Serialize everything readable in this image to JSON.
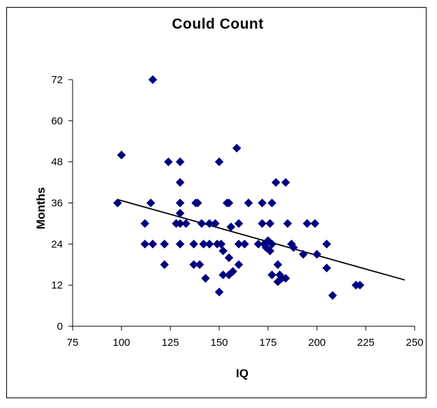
{
  "chart_data": {
    "type": "scatter",
    "title": "Could Count",
    "xlabel": "IQ",
    "ylabel": "Months",
    "xlim": [
      75,
      250
    ],
    "ylim": [
      0,
      72
    ],
    "x_ticks": [
      "75",
      "100",
      "125",
      "150",
      "175",
      "200",
      "225",
      "250"
    ],
    "y_ticks": [
      "0",
      "12",
      "24",
      "36",
      "48",
      "60",
      "72"
    ],
    "grid": false,
    "legend": "none",
    "marker": "diamond",
    "marker_color": "#000080",
    "trendline": {
      "type": "linear",
      "x_start": 98,
      "y_start": 37,
      "x_end": 245,
      "y_end": 13.5,
      "color": "#000000"
    },
    "points": [
      {
        "x": 98,
        "y": 36
      },
      {
        "x": 100,
        "y": 50
      },
      {
        "x": 112,
        "y": 30
      },
      {
        "x": 112,
        "y": 24
      },
      {
        "x": 115,
        "y": 36
      },
      {
        "x": 116,
        "y": 24
      },
      {
        "x": 116,
        "y": 72
      },
      {
        "x": 122,
        "y": 24
      },
      {
        "x": 122,
        "y": 18
      },
      {
        "x": 124,
        "y": 48
      },
      {
        "x": 128,
        "y": 30
      },
      {
        "x": 130,
        "y": 48
      },
      {
        "x": 130,
        "y": 42
      },
      {
        "x": 130,
        "y": 36
      },
      {
        "x": 130,
        "y": 33
      },
      {
        "x": 130,
        "y": 30
      },
      {
        "x": 130,
        "y": 24
      },
      {
        "x": 133,
        "y": 30
      },
      {
        "x": 137,
        "y": 24
      },
      {
        "x": 137,
        "y": 18
      },
      {
        "x": 138,
        "y": 36
      },
      {
        "x": 139,
        "y": 36
      },
      {
        "x": 140,
        "y": 18
      },
      {
        "x": 141,
        "y": 30
      },
      {
        "x": 142,
        "y": 24
      },
      {
        "x": 143,
        "y": 14
      },
      {
        "x": 145,
        "y": 30
      },
      {
        "x": 145,
        "y": 24
      },
      {
        "x": 148,
        "y": 30
      },
      {
        "x": 149,
        "y": 24
      },
      {
        "x": 150,
        "y": 48
      },
      {
        "x": 150,
        "y": 10
      },
      {
        "x": 151,
        "y": 24
      },
      {
        "x": 152,
        "y": 22
      },
      {
        "x": 152,
        "y": 15
      },
      {
        "x": 154,
        "y": 36
      },
      {
        "x": 155,
        "y": 36
      },
      {
        "x": 155,
        "y": 20
      },
      {
        "x": 155,
        "y": 15
      },
      {
        "x": 156,
        "y": 29
      },
      {
        "x": 157,
        "y": 16
      },
      {
        "x": 159,
        "y": 52
      },
      {
        "x": 160,
        "y": 30
      },
      {
        "x": 160,
        "y": 24
      },
      {
        "x": 160,
        "y": 18
      },
      {
        "x": 163,
        "y": 24
      },
      {
        "x": 165,
        "y": 36
      },
      {
        "x": 170,
        "y": 24
      },
      {
        "x": 172,
        "y": 36
      },
      {
        "x": 172,
        "y": 30
      },
      {
        "x": 173,
        "y": 24
      },
      {
        "x": 174,
        "y": 23
      },
      {
        "x": 175,
        "y": 25
      },
      {
        "x": 176,
        "y": 22
      },
      {
        "x": 176,
        "y": 30
      },
      {
        "x": 177,
        "y": 36
      },
      {
        "x": 177,
        "y": 24
      },
      {
        "x": 177,
        "y": 15
      },
      {
        "x": 179,
        "y": 42
      },
      {
        "x": 180,
        "y": 18
      },
      {
        "x": 180,
        "y": 13
      },
      {
        "x": 181,
        "y": 15
      },
      {
        "x": 182,
        "y": 14
      },
      {
        "x": 184,
        "y": 42
      },
      {
        "x": 184,
        "y": 14
      },
      {
        "x": 185,
        "y": 30
      },
      {
        "x": 187,
        "y": 24
      },
      {
        "x": 188,
        "y": 23
      },
      {
        "x": 193,
        "y": 21
      },
      {
        "x": 195,
        "y": 30
      },
      {
        "x": 199,
        "y": 30
      },
      {
        "x": 200,
        "y": 21
      },
      {
        "x": 205,
        "y": 24
      },
      {
        "x": 205,
        "y": 17
      },
      {
        "x": 208,
        "y": 9
      },
      {
        "x": 220,
        "y": 12
      },
      {
        "x": 222,
        "y": 12
      }
    ]
  }
}
